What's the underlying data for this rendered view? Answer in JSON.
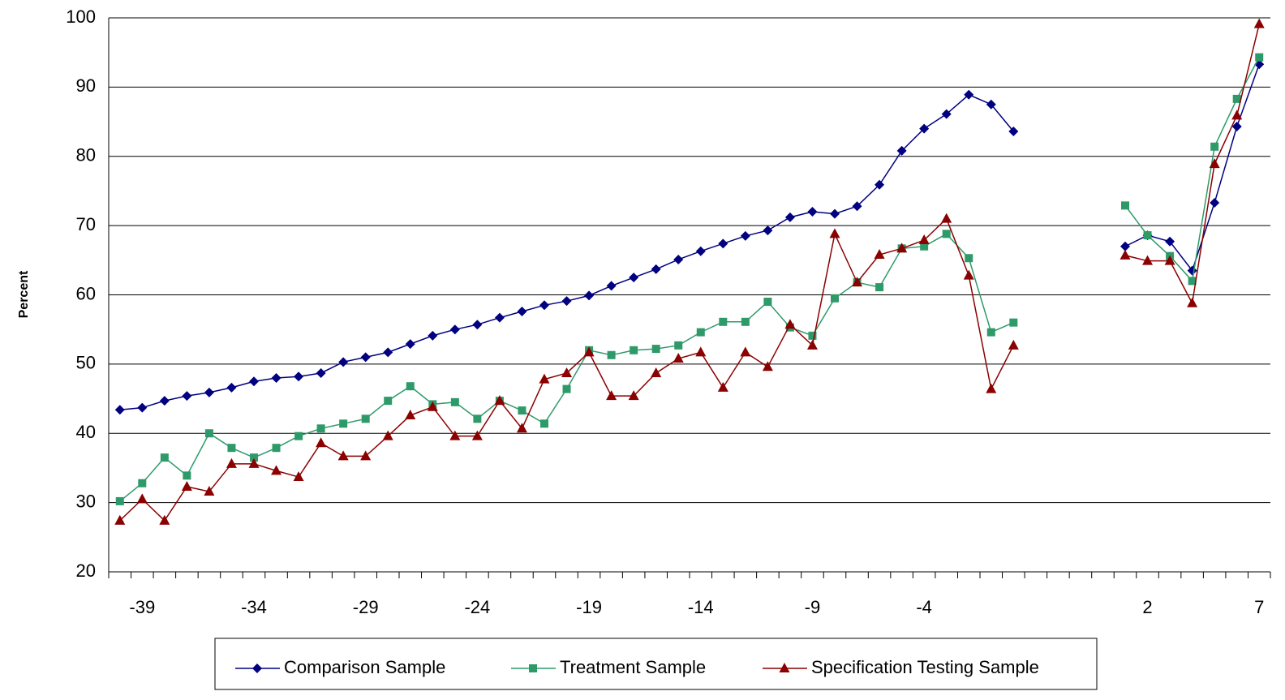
{
  "chart_data": {
    "type": "line",
    "y_label": "Percent",
    "categories": [
      null,
      "-39",
      null,
      null,
      null,
      null,
      "-34",
      null,
      null,
      null,
      null,
      "-29",
      null,
      null,
      null,
      null,
      "-24",
      null,
      null,
      null,
      null,
      "-19",
      null,
      null,
      null,
      null,
      "-14",
      null,
      null,
      null,
      null,
      "-9",
      null,
      null,
      null,
      null,
      "-4",
      null,
      null,
      null,
      null,
      null,
      null,
      null,
      null,
      null,
      "2",
      null,
      null,
      null,
      null,
      "7"
    ],
    "ylim": [
      20,
      100
    ],
    "yticks": [
      20,
      30,
      40,
      50,
      60,
      70,
      80,
      90,
      100
    ],
    "grid": true,
    "legend": "bottom",
    "series": [
      {
        "name": "Comparison Sample",
        "color": "#000080",
        "marker": "diamond",
        "values": [
          43.4,
          43.7,
          44.7,
          45.4,
          45.9,
          46.6,
          47.5,
          48.0,
          48.2,
          48.7,
          50.3,
          51.0,
          51.7,
          52.9,
          54.1,
          55.0,
          55.7,
          56.7,
          57.6,
          58.5,
          59.1,
          59.9,
          61.3,
          62.5,
          63.7,
          65.1,
          66.3,
          67.4,
          68.5,
          69.3,
          71.2,
          72.0,
          71.7,
          72.8,
          75.9,
          80.8,
          84.0,
          86.1,
          88.9,
          87.5,
          83.6,
          null,
          null,
          null,
          null,
          67.0,
          68.6,
          67.7,
          63.5,
          73.3,
          84.3,
          93.3
        ]
      },
      {
        "name": "Treatment Sample",
        "color": "#2e9a6a",
        "marker": "square",
        "values": [
          30.2,
          32.8,
          36.5,
          33.9,
          40.0,
          37.9,
          36.5,
          37.9,
          39.6,
          40.7,
          41.4,
          42.1,
          44.7,
          46.8,
          44.2,
          44.5,
          42.1,
          44.7,
          43.3,
          41.4,
          46.4,
          52.0,
          51.3,
          52.0,
          52.2,
          52.7,
          54.6,
          56.1,
          56.1,
          59.0,
          55.3,
          54.1,
          59.5,
          61.8,
          61.1,
          66.7,
          67.0,
          68.8,
          65.3,
          54.6,
          56.0,
          null,
          null,
          null,
          null,
          72.9,
          68.6,
          65.6,
          62.0,
          81.4,
          88.3,
          94.3
        ]
      },
      {
        "name": "Specification Testing Sample",
        "color": "#8b0000",
        "marker": "triangle",
        "values": [
          27.4,
          30.5,
          27.4,
          32.3,
          31.6,
          35.6,
          35.6,
          34.6,
          33.7,
          38.6,
          36.7,
          36.7,
          39.6,
          42.6,
          43.8,
          39.6,
          39.6,
          44.7,
          40.7,
          47.8,
          48.7,
          51.7,
          45.4,
          45.4,
          48.7,
          50.8,
          51.7,
          46.6,
          51.7,
          49.6,
          55.7,
          52.7,
          68.8,
          61.8,
          65.8,
          66.7,
          67.9,
          71.0,
          62.8,
          46.4,
          52.7,
          null,
          null,
          null,
          null,
          65.7,
          64.9,
          64.9,
          58.8,
          78.9,
          85.9,
          99.1
        ]
      }
    ]
  }
}
